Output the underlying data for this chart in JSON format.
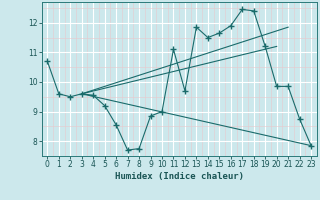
{
  "xlabel": "Humidex (Indice chaleur)",
  "bg_color": "#cce8ec",
  "grid_color": "#ffffff",
  "line_color": "#1a6b6b",
  "xlim": [
    -0.5,
    23.5
  ],
  "ylim": [
    7.5,
    12.7
  ],
  "yticks": [
    8,
    9,
    10,
    11,
    12
  ],
  "xticks": [
    0,
    1,
    2,
    3,
    4,
    5,
    6,
    7,
    8,
    9,
    10,
    11,
    12,
    13,
    14,
    15,
    16,
    17,
    18,
    19,
    20,
    21,
    22,
    23
  ],
  "main_line": {
    "x": [
      0,
      1,
      2,
      3,
      4,
      5,
      6,
      7,
      8,
      9,
      10,
      11,
      12,
      13,
      14,
      15,
      16,
      17,
      18,
      19,
      20,
      21,
      22,
      23
    ],
    "y": [
      10.7,
      9.6,
      9.5,
      9.6,
      9.55,
      9.2,
      8.55,
      7.7,
      7.75,
      8.85,
      9.0,
      11.1,
      9.7,
      11.85,
      11.5,
      11.65,
      11.9,
      12.45,
      12.4,
      11.2,
      9.85,
      9.85,
      8.75,
      7.85
    ]
  },
  "straight_lines": [
    {
      "x": [
        3,
        23
      ],
      "y": [
        9.6,
        7.85
      ]
    },
    {
      "x": [
        3,
        20
      ],
      "y": [
        9.6,
        11.2
      ]
    },
    {
      "x": [
        3,
        21
      ],
      "y": [
        9.6,
        11.85
      ]
    }
  ]
}
